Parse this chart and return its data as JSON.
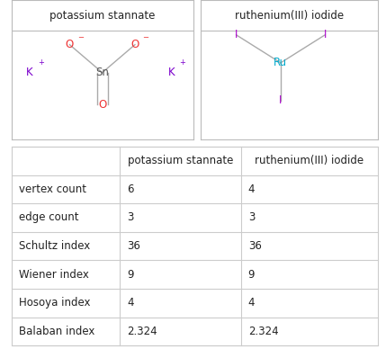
{
  "col_headers": [
    "",
    "potassium stannate",
    "ruthenium(III) iodide"
  ],
  "row_labels": [
    "vertex count",
    "edge count",
    "Schultz index",
    "Wiener index",
    "Hosoya index",
    "Balaban index"
  ],
  "col1_values": [
    "6",
    "3",
    "36",
    "9",
    "4",
    "2.324"
  ],
  "col2_values": [
    "4",
    "3",
    "36",
    "9",
    "4",
    "2.324"
  ],
  "grid_color": "#cccccc",
  "text_color": "#222222",
  "header_fontsize": 8.5,
  "cell_fontsize": 8.5,
  "K_color": "#7B00CC",
  "O_color": "#EE3333",
  "Sn_color": "#555555",
  "I_color": "#AA00CC",
  "Ru_color": "#00AACC",
  "bond_color": "#aaaaaa",
  "mol_panel_border": "#bbbbbb",
  "mol1_title": "potassium stannate",
  "mol2_title": "ruthenium(III) iodide",
  "fig_width": 4.29,
  "fig_height": 3.88,
  "dpi": 100
}
